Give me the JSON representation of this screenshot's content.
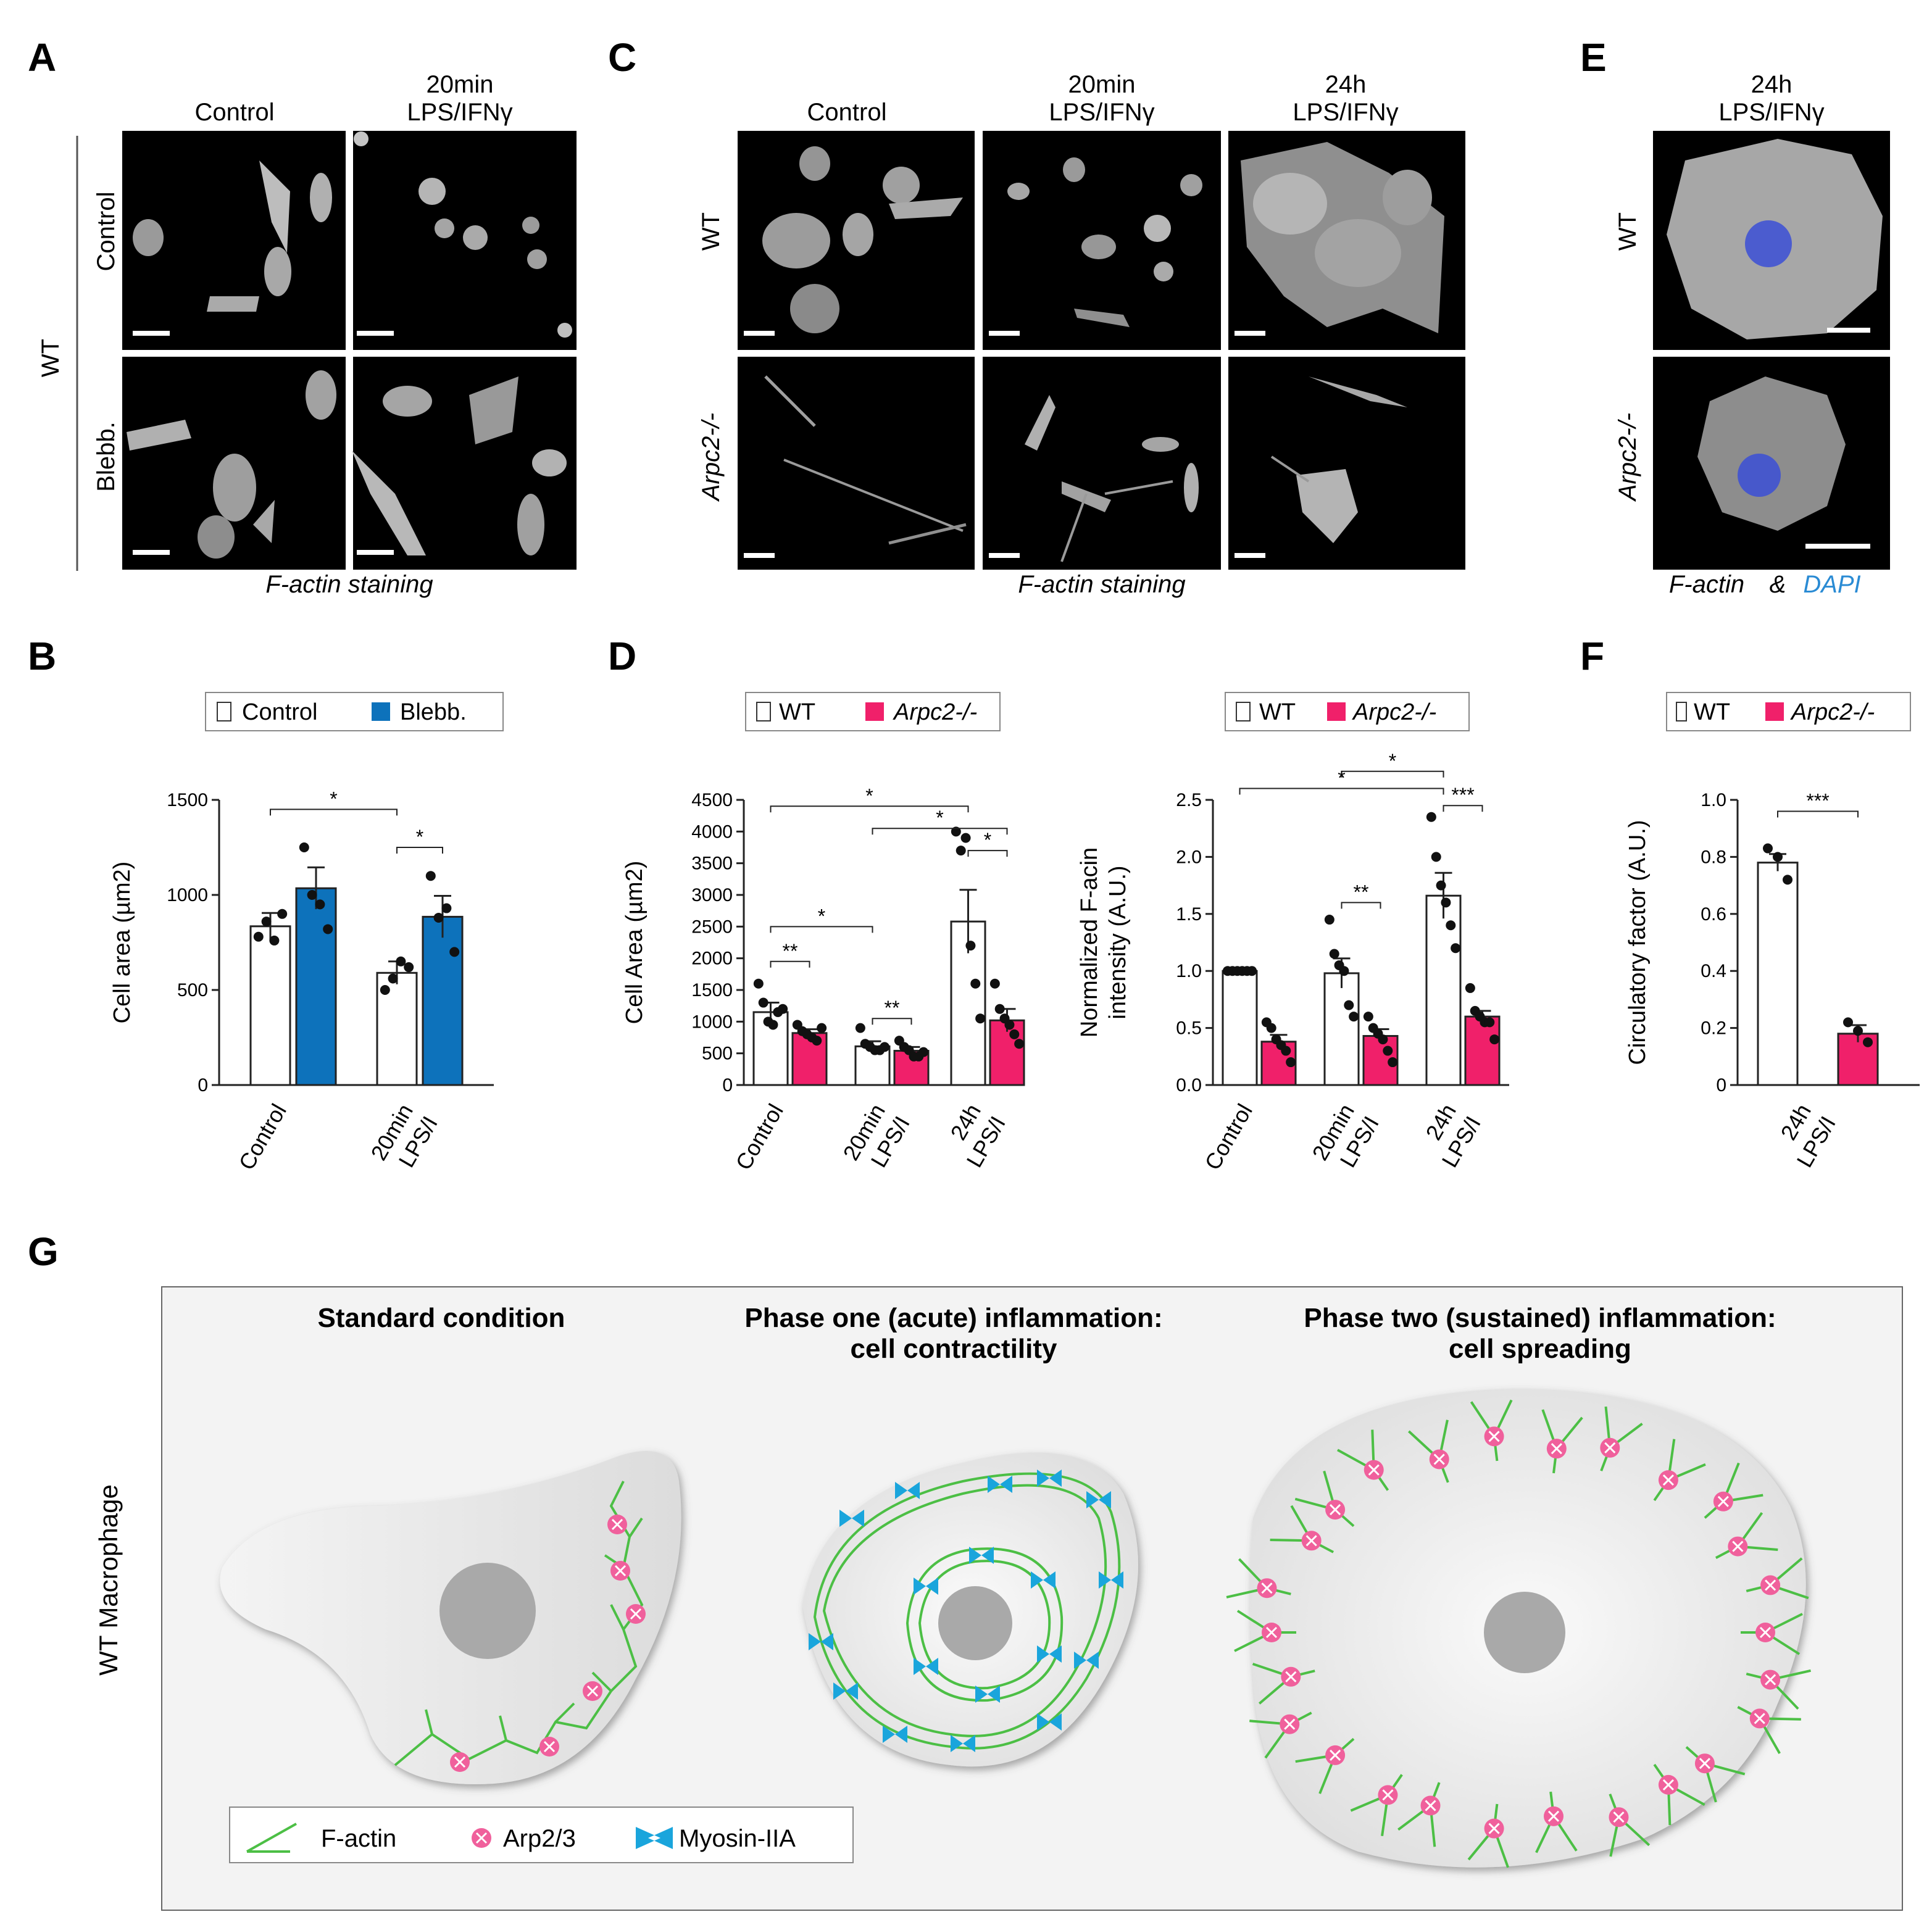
{
  "colors": {
    "control_bar": "#ffffff",
    "blebb_bar": "#0d72bb",
    "arpc2_bar": "#f0206a",
    "factin": "#4cbf45",
    "arp23": "#f0609c",
    "myosin": "#1aa5dc",
    "dapi_text": "#2a8bd4",
    "cell_fill": "#e3e3e3",
    "nucleus": "#a9a9a9"
  },
  "panel_a": {
    "label": "A",
    "col_headers": [
      "Control",
      "20min\nLPS/IFNγ"
    ],
    "row_headers": [
      "Control",
      "Blebb."
    ],
    "group_label": "WT",
    "caption": "F-actin staining"
  },
  "panel_c": {
    "label": "C",
    "col_headers": [
      "Control",
      "20min\nLPS/IFNγ",
      "24h\nLPS/IFNγ"
    ],
    "row_headers": [
      "WT",
      "Arpc2-/-"
    ],
    "caption": "F-actin staining"
  },
  "panel_e": {
    "label": "E",
    "col_header": "24h\nLPS/IFNγ",
    "row_headers": [
      "WT",
      "Arpc2-/-"
    ],
    "caption_main": "F-actin",
    "caption_amp": "&",
    "caption_dapi": "DAPI"
  },
  "panel_b": {
    "label": "B"
  },
  "panel_d": {
    "label": "D"
  },
  "panel_f": {
    "label": "F"
  },
  "chart_data": [
    {
      "id": "B",
      "type": "bar",
      "title": "",
      "ylabel": "Cell area (µm2)",
      "ylim": [
        0,
        1500
      ],
      "yticks": [
        0,
        500,
        1000,
        1500
      ],
      "categories": [
        "Control",
        "20min\nLPS/I"
      ],
      "legend": [
        "Control",
        "Blebb."
      ],
      "series": [
        {
          "name": "Control",
          "color": "#ffffff",
          "values": [
            835,
            590
          ],
          "errors": [
            70,
            60
          ],
          "points": [
            [
              780,
              860,
              760,
              900
            ],
            [
              500,
              560,
              650,
              620
            ]
          ]
        },
        {
          "name": "Blebb.",
          "color": "#0d72bb",
          "values": [
            1035,
            885
          ],
          "errors": [
            110,
            110
          ],
          "points": [
            [
              1250,
              1000,
              950,
              820
            ],
            [
              1100,
              880,
              930,
              700
            ]
          ]
        }
      ],
      "significance": [
        {
          "from": [
            0,
            0
          ],
          "to": [
            1,
            0
          ],
          "label": "*",
          "y": 1450
        },
        {
          "from": [
            1,
            0
          ],
          "to": [
            1,
            1
          ],
          "label": "*",
          "y": 1250
        }
      ]
    },
    {
      "id": "D-left",
      "type": "bar",
      "title": "",
      "ylabel": "Cell Area (µm2)",
      "ylim": [
        0,
        4500
      ],
      "yticks": [
        0,
        500,
        1000,
        1500,
        2000,
        2500,
        3000,
        3500,
        4000,
        4500
      ],
      "categories": [
        "Control",
        "20min\nLPS/I",
        "24h\nLPS/I"
      ],
      "legend": [
        "WT",
        "Arpc2-/-"
      ],
      "series": [
        {
          "name": "WT",
          "color": "#ffffff",
          "values": [
            1150,
            610,
            2580
          ],
          "errors": [
            150,
            80,
            500
          ],
          "points": [
            [
              1600,
              1300,
              1000,
              950,
              1150,
              1200
            ],
            [
              900,
              650,
              600,
              550,
              550,
              600
            ],
            [
              4000,
              3700,
              3900,
              2200,
              1600,
              1050
            ]
          ]
        },
        {
          "name": "Arpc2-/-",
          "color": "#f0206a",
          "values": [
            820,
            540,
            1020
          ],
          "errors": [
            60,
            60,
            180
          ],
          "points": [
            [
              950,
              850,
              800,
              750,
              700,
              900
            ],
            [
              700,
              600,
              550,
              450,
              450,
              520
            ],
            [
              1600,
              1200,
              1050,
              950,
              800,
              650
            ]
          ]
        }
      ],
      "significance": [
        {
          "from": [
            0,
            0
          ],
          "to": [
            2,
            0
          ],
          "label": "*",
          "y": 4400
        },
        {
          "from": [
            1,
            0
          ],
          "to": [
            2,
            1
          ],
          "label": "*",
          "y": 4050
        },
        {
          "from": [
            2,
            0
          ],
          "to": [
            2,
            1
          ],
          "label": "*",
          "y": 3700
        },
        {
          "from": [
            0,
            0
          ],
          "to": [
            1,
            0
          ],
          "label": "*",
          "y": 2500
        },
        {
          "from": [
            0,
            0
          ],
          "to": [
            0,
            1
          ],
          "label": "**",
          "y": 1950
        },
        {
          "from": [
            1,
            0
          ],
          "to": [
            1,
            1
          ],
          "label": "**",
          "y": 1050
        }
      ]
    },
    {
      "id": "D-right",
      "type": "bar",
      "title": "",
      "ylabel": "Normalized F-acin\nintensity (A.U.)",
      "ylim": [
        0,
        2.5
      ],
      "yticks": [
        0,
        0.5,
        1.0,
        1.5,
        2.0,
        2.5
      ],
      "categories": [
        "Control",
        "20min\nLPS/I",
        "24h\nLPS/I"
      ],
      "legend": [
        "WT",
        "Arpc2-/-"
      ],
      "series": [
        {
          "name": "WT",
          "color": "#ffffff",
          "values": [
            1.0,
            0.98,
            1.66
          ],
          "errors": [
            0.01,
            0.13,
            0.2
          ],
          "points": [
            [
              1.0,
              1.0,
              1.0,
              1.0,
              1.0,
              1.0
            ],
            [
              1.45,
              1.15,
              1.05,
              1.0,
              0.7,
              0.6
            ],
            [
              2.35,
              2.0,
              1.75,
              1.6,
              1.4,
              1.2
            ]
          ]
        },
        {
          "name": "Arpc2-/-",
          "color": "#f0206a",
          "values": [
            0.38,
            0.43,
            0.6
          ],
          "errors": [
            0.06,
            0.06,
            0.05
          ],
          "points": [
            [
              0.55,
              0.5,
              0.4,
              0.35,
              0.3,
              0.2
            ],
            [
              0.6,
              0.5,
              0.45,
              0.4,
              0.3,
              0.2
            ],
            [
              0.85,
              0.65,
              0.6,
              0.55,
              0.55,
              0.4
            ]
          ]
        }
      ],
      "significance": [
        {
          "from": [
            1,
            0
          ],
          "to": [
            2,
            0
          ],
          "label": "*",
          "y": 2.75
        },
        {
          "from": [
            0,
            0
          ],
          "to": [
            2,
            0
          ],
          "label": "*",
          "y": 2.6
        },
        {
          "from": [
            2,
            0
          ],
          "to": [
            2,
            1
          ],
          "label": "***",
          "y": 2.45
        },
        {
          "from": [
            1,
            0
          ],
          "to": [
            1,
            1
          ],
          "label": "**",
          "y": 1.6
        }
      ]
    },
    {
      "id": "F",
      "type": "bar",
      "title": "",
      "ylabel": "Circulatory factor (A.U.)",
      "ylim": [
        0,
        1.0
      ],
      "yticks": [
        0,
        0.2,
        0.4,
        0.6,
        0.8,
        1.0
      ],
      "categories": [
        "24h\nLPS/I"
      ],
      "legend": [
        "WT",
        "Arpc2-/-"
      ],
      "series": [
        {
          "name": "WT",
          "color": "#ffffff",
          "values": [
            0.78
          ],
          "errors": [
            0.03
          ],
          "points": [
            [
              0.83,
              0.8,
              0.72
            ]
          ]
        },
        {
          "name": "Arpc2-/-",
          "color": "#f0206a",
          "values": [
            0.18
          ],
          "errors": [
            0.03
          ],
          "points": [
            [
              0.22,
              0.19,
              0.15
            ]
          ]
        }
      ],
      "significance": [
        {
          "from": [
            0,
            0
          ],
          "to": [
            0,
            1
          ],
          "label": "***",
          "y": 0.96
        }
      ]
    }
  ],
  "panel_g": {
    "label": "G",
    "row_label": "WT Macrophage",
    "titles": [
      "Standard condition",
      "Phase one (acute) inflammation:\ncell contractility",
      "Phase two (sustained) inflammation:\ncell spreading"
    ],
    "legend": [
      {
        "icon": "f-actin-icon",
        "label": "F-actin"
      },
      {
        "icon": "arp23-icon",
        "label": "Arp2/3"
      },
      {
        "icon": "myosin-icon",
        "label": "Myosin-IIA"
      }
    ]
  }
}
